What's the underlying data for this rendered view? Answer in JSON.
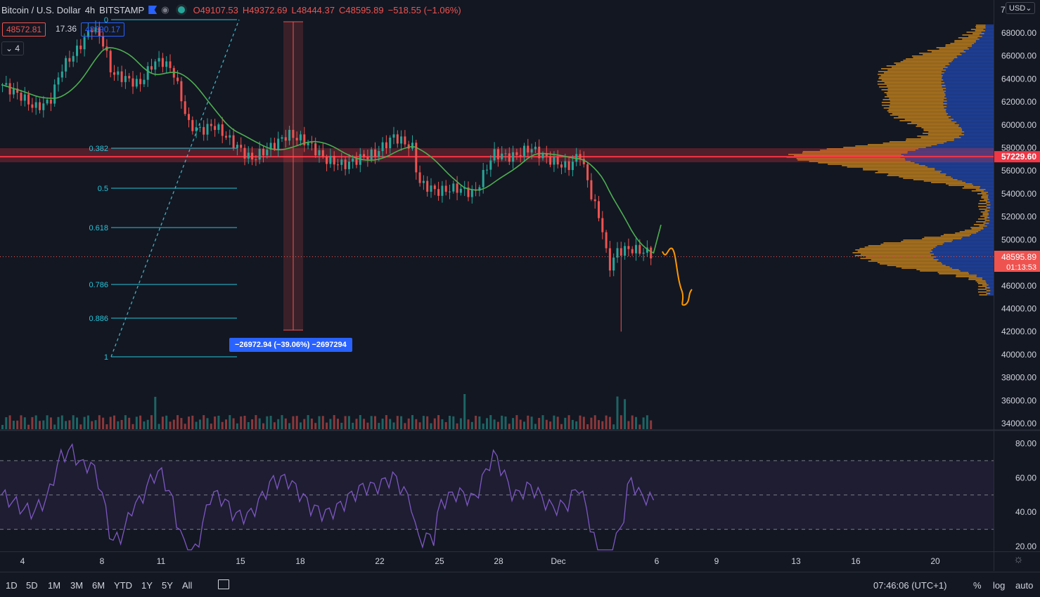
{
  "header": {
    "symbol": "Bitcoin / U.S. Dollar",
    "interval": "4h",
    "exchange": "BITSTAMP",
    "eye_icon": "eye-icon",
    "open": "O49107.53",
    "high": "H49372.69",
    "low": "L48444.37",
    "close": "C48595.89",
    "change": "−518.55 (−1.06%)",
    "bid": "48572.81",
    "spread": "17.36",
    "ask": "48590.17",
    "indicators_count": "4",
    "currency": "USD"
  },
  "price_axis": {
    "labels": [
      "68000.00",
      "66000.00",
      "64000.00",
      "62000.00",
      "60000.00",
      "58000.00",
      "56000.00",
      "54000.00",
      "52000.00",
      "50000.00",
      "48000.00",
      "46000.00",
      "44000.00",
      "42000.00",
      "40000.00",
      "38000.00",
      "36000.00",
      "34000.00"
    ],
    "top_clip": "7",
    "resistance_tag": "57229.60",
    "last_price_tag": "48595.89",
    "countdown": "01:13:53",
    "resistance_color": "#f23645",
    "last_color": "#ef5350"
  },
  "rsi_axis": [
    "80.00",
    "60.00",
    "40.00",
    "20.00"
  ],
  "time_axis": [
    "4",
    "8",
    "11",
    "15",
    "18",
    "22",
    "25",
    "28",
    "Dec",
    "6",
    "9",
    "13",
    "16",
    "20"
  ],
  "fib": {
    "levels": [
      "0",
      "0.382",
      "0.5",
      "0.618",
      "0.786",
      "0.886",
      "1"
    ],
    "color": "#26c6da"
  },
  "measure_label": "−26972.94 (−39.06%) −2697294",
  "bottom": {
    "timeframes": [
      "1D",
      "5D",
      "1M",
      "3M",
      "6M",
      "YTD",
      "1Y",
      "5Y",
      "All"
    ],
    "clock": "07:46:06 (UTC+1)",
    "percent": "%",
    "log": "log",
    "auto": "auto"
  },
  "colors": {
    "up": "#26a69a",
    "down": "#ef5350",
    "ma": "#4caf50",
    "rsi": "#7e57c2",
    "drawing": "#ff9800",
    "background": "#131722"
  }
}
